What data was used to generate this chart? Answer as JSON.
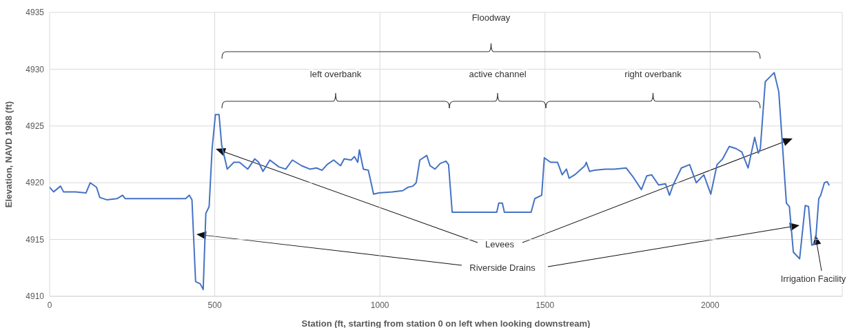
{
  "chart_data": {
    "type": "line",
    "xlabel": "Station (ft,  starting from station 0 on left when looking downstream)",
    "ylabel": "Elevation, NAVD 1988 (ft)",
    "xlim": [
      0,
      2400
    ],
    "xticks": [
      0,
      500,
      1000,
      1500,
      2000
    ],
    "ylim": [
      4910,
      4935
    ],
    "yticks": [
      4910,
      4915,
      4920,
      4925,
      4930,
      4935
    ],
    "grid": true,
    "annotations": [
      "Floodway",
      "left overbank",
      "active channel",
      "right overbank",
      "Levees",
      "Riverside Drains",
      "Irrigation Facility"
    ],
    "series": [
      {
        "color": "#4472c4",
        "x": [
          0,
          12,
          33,
          42,
          79,
          110,
          123,
          142,
          152,
          173,
          204,
          221,
          229,
          267,
          412,
          423,
          431,
          442,
          456,
          465,
          473,
          483,
          492,
          502,
          513,
          521,
          538,
          558,
          575,
          600,
          621,
          633,
          646,
          667,
          694,
          715,
          735,
          763,
          788,
          808,
          825,
          840,
          860,
          881,
          892,
          913,
          923,
          933,
          938,
          950,
          965,
          981,
          996,
          1038,
          1069,
          1085,
          1100,
          1110,
          1121,
          1142,
          1152,
          1167,
          1183,
          1200,
          1208,
          1219,
          1225,
          1354,
          1360,
          1371,
          1377,
          1458,
          1469,
          1490,
          1498,
          1517,
          1538,
          1552,
          1565,
          1573,
          1590,
          1621,
          1625,
          1635,
          1650,
          1683,
          1710,
          1746,
          1767,
          1792,
          1808,
          1823,
          1844,
          1865,
          1877,
          1888,
          1913,
          1938,
          1958,
          1981,
          2002,
          2021,
          2038,
          2058,
          2079,
          2096,
          2115,
          2135,
          2146,
          2152,
          2167,
          2177,
          2194,
          2208,
          2231,
          2240,
          2252,
          2271,
          2288,
          2298,
          2308,
          2319,
          2329,
          2335,
          2346,
          2354,
          2360
        ],
        "values": [
          4919.6,
          4919.2,
          4919.7,
          4919.2,
          4919.2,
          4919.1,
          4920.0,
          4919.6,
          4918.7,
          4918.5,
          4918.6,
          4918.9,
          4918.6,
          4918.6,
          4918.6,
          4918.9,
          4918.5,
          4911.3,
          4911.1,
          4910.6,
          4917.3,
          4917.9,
          4923.0,
          4926.0,
          4926.0,
          4923.3,
          4921.2,
          4921.8,
          4921.8,
          4921.2,
          4922.1,
          4921.8,
          4921.0,
          4922.0,
          4921.4,
          4921.2,
          4922.0,
          4921.5,
          4921.2,
          4921.3,
          4921.1,
          4921.6,
          4922.0,
          4921.5,
          4922.1,
          4922.0,
          4922.3,
          4921.8,
          4922.9,
          4921.2,
          4921.1,
          4919.0,
          4919.1,
          4919.2,
          4919.3,
          4919.6,
          4919.7,
          4920.0,
          4922.0,
          4922.4,
          4921.5,
          4921.2,
          4921.7,
          4921.9,
          4921.6,
          4917.4,
          4917.4,
          4917.4,
          4918.2,
          4918.2,
          4917.4,
          4917.4,
          4918.6,
          4918.9,
          4922.2,
          4921.8,
          4921.8,
          4920.7,
          4921.2,
          4920.4,
          4920.7,
          4921.5,
          4921.8,
          4921.0,
          4921.1,
          4921.2,
          4921.2,
          4921.3,
          4920.5,
          4919.4,
          4920.6,
          4920.7,
          4919.8,
          4919.9,
          4918.9,
          4919.8,
          4921.3,
          4921.6,
          4920.0,
          4920.7,
          4919.0,
          4921.6,
          4922.1,
          4923.2,
          4923.0,
          4922.7,
          4921.3,
          4924.0,
          4922.6,
          4923.0,
          4928.9,
          4929.2,
          4929.7,
          4928.0,
          4918.2,
          4917.9,
          4913.9,
          4913.3,
          4918.0,
          4917.9,
          4914.5,
          4914.7,
          4918.6,
          4918.9,
          4920.0,
          4920.1,
          4919.8
        ]
      }
    ]
  }
}
